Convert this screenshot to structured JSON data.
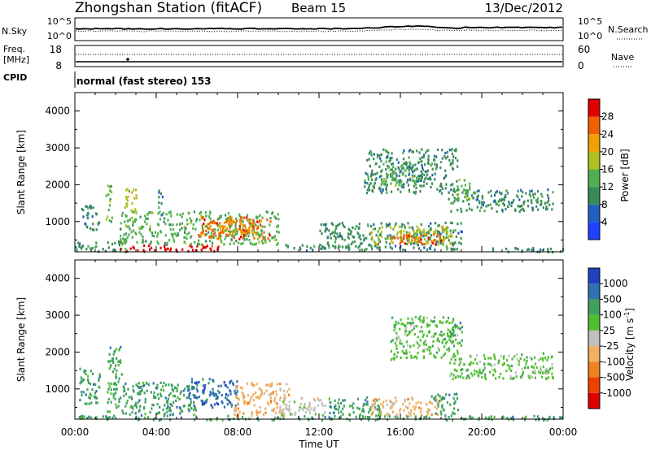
{
  "header": {
    "station_title": "Zhongshan Station (fitACF)",
    "beam": "Beam 15",
    "date": "13/Dec/2012"
  },
  "noise_panel": {
    "left_label": "N.Sky",
    "left_ticks": [
      "10^5",
      "10^0"
    ],
    "right_ticks": [
      "10^5",
      "10^0"
    ],
    "right_label": "N.Search"
  },
  "freq_panel": {
    "left_label_line1": "Freq.",
    "left_label_line2": "[MHz]",
    "left_ticks": [
      "18",
      "8"
    ],
    "right_ticks": [
      "60",
      "0"
    ],
    "right_label": "Nave"
  },
  "cpid_panel": {
    "label": "CPID",
    "text": "normal (fast stereo) 153"
  },
  "power_panel": {
    "ylabel": "Slant Range [km]",
    "colorbar_label": "Power [dB]"
  },
  "velocity_panel": {
    "ylabel": "Slant Range [km]",
    "colorbar_label": "Velocity [m s",
    "colorbar_label_sup": "-1",
    "colorbar_label_close": "]"
  },
  "x_axis_label": "Time UT",
  "colors": {
    "power_scale": [
      "#2040ff",
      "#2060c0",
      "#3a8a5a",
      "#50b050",
      "#b0c020",
      "#f0a000",
      "#f06000",
      "#e00000"
    ],
    "velocity_scale": [
      "#e00000",
      "#f04000",
      "#f08020",
      "#f0b060",
      "#c0c0c0",
      "#50c030",
      "#40a060",
      "#3070b0",
      "#2040c0"
    ]
  },
  "chart_data": [
    {
      "type": "heatmap",
      "name": "power",
      "title": "",
      "xlabel": "",
      "ylabel": "Slant Range [km]",
      "xlim": [
        0,
        24
      ],
      "ylim": [
        180,
        4500
      ],
      "x_ticks": [
        0,
        4,
        8,
        12,
        16,
        20,
        24
      ],
      "y_ticks": [
        1000,
        2000,
        3000,
        4000
      ],
      "colorbar": {
        "label": "Power [dB]",
        "ticks": [
          "4",
          "8",
          "12",
          "16",
          "20",
          "24",
          "28"
        ],
        "range": [
          0,
          30
        ]
      },
      "regions": [
        {
          "x": [
            2.2,
            10.0
          ],
          "y": [
            400,
            1300
          ],
          "v": 12
        },
        {
          "x": [
            6.0,
            9.6
          ],
          "y": [
            550,
            1150
          ],
          "v": 24
        },
        {
          "x": [
            7.0,
            8.8
          ],
          "y": [
            700,
            1100
          ],
          "v": 20
        },
        {
          "x": [
            0.0,
            2.5
          ],
          "y": [
            200,
            500
          ],
          "v": 8
        },
        {
          "x": [
            2.0,
            7.5
          ],
          "y": [
            220,
            380
          ],
          "v": 28
        },
        {
          "x": [
            0.3,
            1.2
          ],
          "y": [
            800,
            1500
          ],
          "v": 8
        },
        {
          "x": [
            1.5,
            1.8
          ],
          "y": [
            1000,
            2100
          ],
          "v": 12
        },
        {
          "x": [
            2.4,
            3.0
          ],
          "y": [
            1300,
            2000
          ],
          "v": 16
        },
        {
          "x": [
            4.0,
            4.3
          ],
          "y": [
            1200,
            1900
          ],
          "v": 8
        },
        {
          "x": [
            10.0,
            14.0
          ],
          "y": [
            250,
            400
          ],
          "v": 8
        },
        {
          "x": [
            12.0,
            19.0
          ],
          "y": [
            250,
            1000
          ],
          "v": 8
        },
        {
          "x": [
            14.5,
            18.5
          ],
          "y": [
            400,
            900
          ],
          "v": 16
        },
        {
          "x": [
            15.5,
            18.0
          ],
          "y": [
            400,
            700
          ],
          "v": 24
        },
        {
          "x": [
            14.2,
            18.8
          ],
          "y": [
            1800,
            3000
          ],
          "v": 8
        },
        {
          "x": [
            15.0,
            16.8
          ],
          "y": [
            2000,
            2600
          ],
          "v": 12
        },
        {
          "x": [
            18.3,
            23.5
          ],
          "y": [
            1300,
            1900
          ],
          "v": 8
        },
        {
          "x": [
            18.6,
            19.4
          ],
          "y": [
            1600,
            2200
          ],
          "v": 12
        },
        {
          "x": [
            20.0,
            24.0
          ],
          "y": [
            200,
            320
          ],
          "v": 8
        }
      ]
    },
    {
      "type": "heatmap",
      "name": "velocity",
      "title": "",
      "xlabel": "Time UT",
      "ylabel": "Slant Range [km]",
      "xlim": [
        0,
        24
      ],
      "ylim": [
        180,
        4500
      ],
      "x_ticks": [
        0,
        4,
        8,
        12,
        16,
        20,
        24
      ],
      "x_tick_labels": [
        "00:00",
        "04:00",
        "08:00",
        "12:00",
        "16:00",
        "20:00",
        "00:00"
      ],
      "y_ticks": [
        1000,
        2000,
        3000,
        4000
      ],
      "colorbar": {
        "label": "Velocity [m s-1]",
        "ticks": [
          "1000",
          "500",
          "100",
          "25",
          "-25",
          "-100",
          "-500",
          "-1000"
        ]
      },
      "regions": [
        {
          "x": [
            1.5,
            6.0
          ],
          "y": [
            300,
            1200
          ],
          "v": 100
        },
        {
          "x": [
            0.2,
            1.2
          ],
          "y": [
            600,
            1600
          ],
          "v": 100
        },
        {
          "x": [
            1.6,
            2.3
          ],
          "y": [
            1000,
            2200
          ],
          "v": 100
        },
        {
          "x": [
            5.5,
            8.0
          ],
          "y": [
            500,
            1300
          ],
          "v": 500
        },
        {
          "x": [
            7.8,
            10.5
          ],
          "y": [
            300,
            1200
          ],
          "v": -100
        },
        {
          "x": [
            10.0,
            12.5
          ],
          "y": [
            300,
            800
          ],
          "v": -25
        },
        {
          "x": [
            12.5,
            15.0
          ],
          "y": [
            300,
            800
          ],
          "v": 100
        },
        {
          "x": [
            14.5,
            18.0
          ],
          "y": [
            300,
            800
          ],
          "v": -100
        },
        {
          "x": [
            17.5,
            18.8
          ],
          "y": [
            300,
            900
          ],
          "v": 100
        },
        {
          "x": [
            15.5,
            18.8
          ],
          "y": [
            1800,
            3000
          ],
          "v": 25
        },
        {
          "x": [
            18.4,
            23.5
          ],
          "y": [
            1300,
            2000
          ],
          "v": 25
        },
        {
          "x": [
            18.4,
            19.0
          ],
          "y": [
            2200,
            2900
          ],
          "v": 100
        },
        {
          "x": [
            0.0,
            24.0
          ],
          "y": [
            180,
            300
          ],
          "v": 100
        }
      ]
    }
  ]
}
